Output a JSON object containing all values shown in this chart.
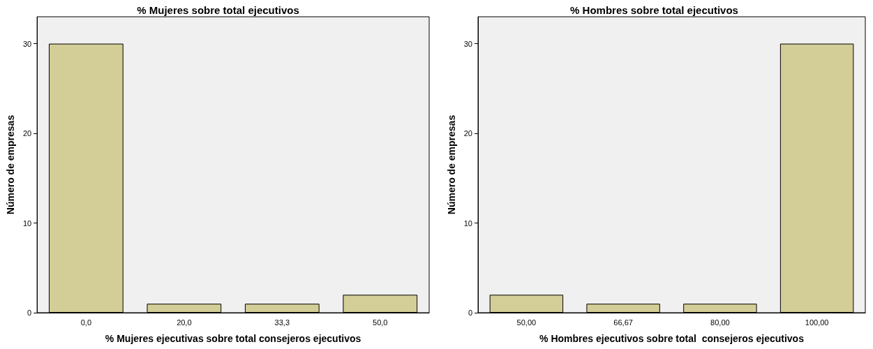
{
  "chart_data": [
    {
      "type": "bar",
      "title": "% Mujeres sobre total ejecutivos",
      "xlabel": "% Mujeres ejecutivas sobre total consejeros ejecutivos",
      "ylabel": "Número de empresas",
      "categories": [
        "0,0",
        "20,0",
        "33,3",
        "50,0"
      ],
      "values": [
        30,
        1,
        1,
        2
      ],
      "color": "#d3ce97",
      "ylim": [
        0,
        33
      ],
      "yticks": [
        0,
        10,
        20,
        30
      ],
      "grid": false
    },
    {
      "type": "bar",
      "title": "% Hombres sobre total ejecutivos",
      "xlabel": "% Hombres ejecutivos sobre total  consejeros ejecutivos",
      "ylabel": "Número de empresas",
      "categories": [
        "50,00",
        "66,67",
        "80,00",
        "100,00"
      ],
      "values": [
        2,
        1,
        1,
        30
      ],
      "color": "#d3ce97",
      "ylim": [
        0,
        33
      ],
      "yticks": [
        0,
        10,
        20,
        30
      ],
      "grid": false
    }
  ]
}
